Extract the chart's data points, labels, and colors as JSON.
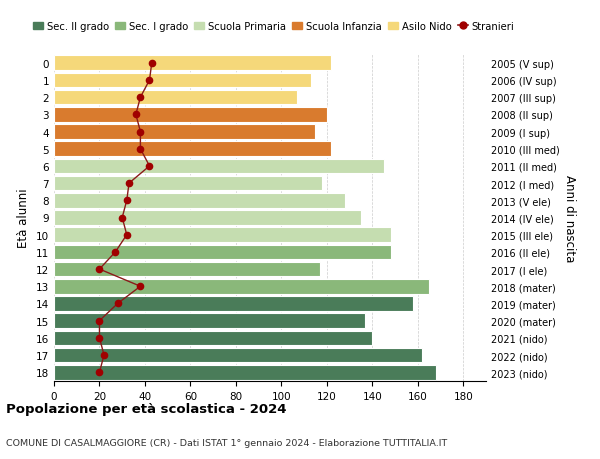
{
  "ages": [
    0,
    1,
    2,
    3,
    4,
    5,
    6,
    7,
    8,
    9,
    10,
    11,
    12,
    13,
    14,
    15,
    16,
    17,
    18
  ],
  "years": [
    "2023 (nido)",
    "2022 (nido)",
    "2021 (nido)",
    "2020 (mater)",
    "2019 (mater)",
    "2018 (mater)",
    "2017 (I ele)",
    "2016 (II ele)",
    "2015 (III ele)",
    "2014 (IV ele)",
    "2013 (V ele)",
    "2012 (I med)",
    "2011 (II med)",
    "2010 (III med)",
    "2009 (I sup)",
    "2008 (II sup)",
    "2007 (III sup)",
    "2006 (IV sup)",
    "2005 (V sup)"
  ],
  "bar_values": [
    122,
    113,
    107,
    120,
    115,
    122,
    145,
    118,
    128,
    135,
    148,
    148,
    117,
    165,
    158,
    137,
    140,
    162,
    168
  ],
  "stranieri": [
    43,
    42,
    38,
    36,
    38,
    38,
    42,
    33,
    32,
    30,
    32,
    27,
    20,
    38,
    28,
    20,
    20,
    22,
    20
  ],
  "bar_colors": [
    "#f5d87a",
    "#f5d87a",
    "#f5d87a",
    "#d97b2e",
    "#d97b2e",
    "#d97b2e",
    "#c5ddb0",
    "#c5ddb0",
    "#c5ddb0",
    "#c5ddb0",
    "#c5ddb0",
    "#8ab87a",
    "#8ab87a",
    "#8ab87a",
    "#4a7c59",
    "#4a7c59",
    "#4a7c59",
    "#4a7c59",
    "#4a7c59"
  ],
  "legend_labels": [
    "Sec. II grado",
    "Sec. I grado",
    "Scuola Primaria",
    "Scuola Infanzia",
    "Asilo Nido",
    "Stranieri"
  ],
  "legend_colors": [
    "#4a7c59",
    "#8ab87a",
    "#c5ddb0",
    "#d97b2e",
    "#f5d87a",
    "#a00000"
  ],
  "stranieri_color": "#a00000",
  "stranieri_line_color": "#8b1a1a",
  "ylabel_left": "Età alunni",
  "ylabel_right": "Anni di nascita",
  "title": "Popolazione per età scolastica - 2024",
  "subtitle": "COMUNE DI CASALMAGGIORE (CR) - Dati ISTAT 1° gennaio 2024 - Elaborazione TUTTITALIA.IT",
  "xlim": [
    0,
    190
  ],
  "xticks": [
    0,
    20,
    40,
    60,
    80,
    100,
    120,
    140,
    160,
    180
  ],
  "bg_color": "#ffffff",
  "grid_color": "#cccccc"
}
